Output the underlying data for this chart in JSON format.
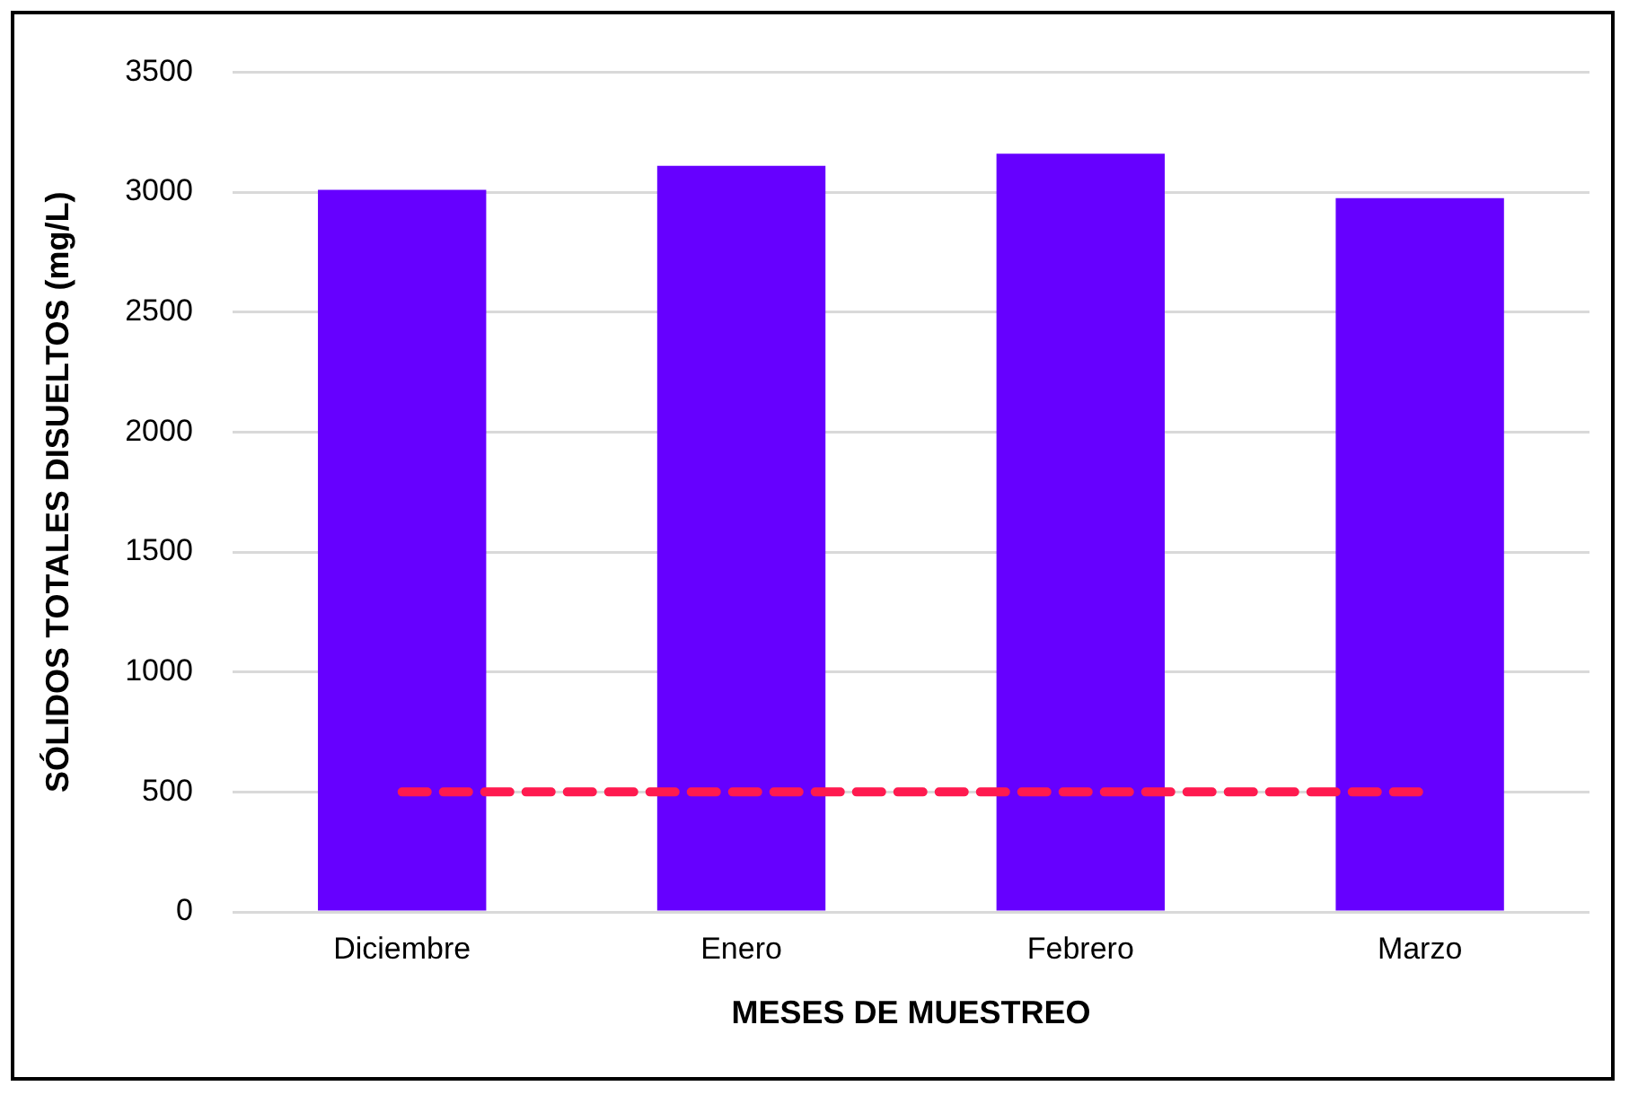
{
  "chart_data": {
    "type": "bar",
    "xlabel": "MESES DE MUESTREO",
    "ylabel": "SÓLIDOS TOTALES DISUELTOS (mg/L)",
    "categories": [
      "Diciembre",
      "Enero",
      "Febrero",
      "Marzo"
    ],
    "series": [
      {
        "color": "#6600ff",
        "values": [
          3010,
          3110,
          3160,
          2975
        ]
      },
      {
        "type": "line",
        "color": "#ff1a4f",
        "line_style": "dashed",
        "marker": "none",
        "values": [
          500,
          500,
          500,
          500
        ]
      }
    ],
    "ylim": [
      0,
      3500
    ],
    "yticks": [
      0,
      500,
      1000,
      1500,
      2000,
      2500,
      3000,
      3500
    ],
    "grid": "y",
    "legend": false
  }
}
